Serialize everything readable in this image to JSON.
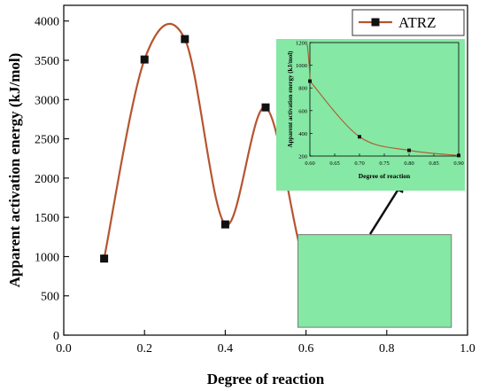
{
  "chart_data": [
    {
      "type": "line",
      "title": "",
      "xlabel": "Degree of reaction",
      "ylabel": "Apparent activation energy (kJ/mol)",
      "xlim": [
        0.0,
        1.0
      ],
      "ylim": [
        0,
        4200
      ],
      "x_ticks": [
        "0.0",
        "0.2",
        "0.4",
        "0.6",
        "0.8",
        "1.0"
      ],
      "y_ticks": [
        "0",
        "500",
        "1000",
        "1500",
        "2000",
        "2500",
        "3000",
        "3500",
        "4000"
      ],
      "grid": false,
      "legend": "top-right",
      "series": [
        {
          "name": "ATRZ",
          "x": [
            0.1,
            0.2,
            0.3,
            0.4,
            0.5,
            0.6,
            0.7,
            0.8,
            0.9
          ],
          "y": [
            975,
            3510,
            3770,
            1410,
            2900,
            860,
            370,
            250,
            205
          ]
        }
      ]
    },
    {
      "type": "line",
      "title": "",
      "xlabel": "Degree of reaction",
      "ylabel": "Apparent activation energy (kJ/mol)",
      "xlim": [
        0.6,
        0.9
      ],
      "ylim": [
        200,
        1200
      ],
      "x_ticks": [
        "0.60",
        "0.65",
        "0.70",
        "0.75",
        "0.80",
        "0.85",
        "0.90"
      ],
      "y_ticks": [
        "200",
        "400",
        "600",
        "800",
        "1000",
        "1200"
      ],
      "grid": false,
      "series": [
        {
          "name": "",
          "x": [
            0.6,
            0.7,
            0.8,
            0.9
          ],
          "y": [
            860,
            370,
            250,
            205
          ]
        }
      ]
    }
  ],
  "colors": {
    "line": "#b5552f",
    "marker": "#111111",
    "inset_marker": "#2e9d5a",
    "highlight_fill": "#85e8a4",
    "arrow": "#111111"
  }
}
